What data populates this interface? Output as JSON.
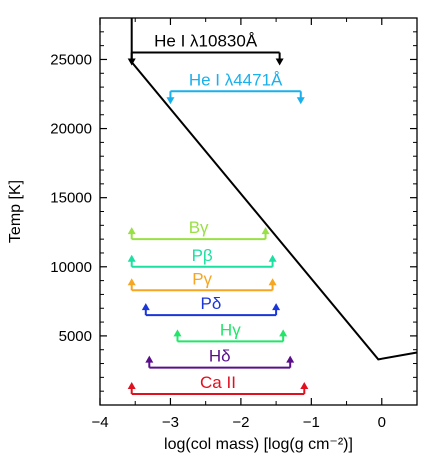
{
  "chart_data": {
    "type": "line",
    "xlabel": "log(col mass) [log(g cm⁻²)]",
    "ylabel": "Temp [K]",
    "xlim": [
      -4,
      0.5
    ],
    "ylim": [
      0,
      28000
    ],
    "xticks": [
      -4,
      -3,
      -2,
      -1,
      0
    ],
    "xtick_labels": [
      "−4",
      "−3",
      "−2",
      "−1",
      "0"
    ],
    "yticks": [
      5000,
      10000,
      15000,
      20000,
      25000
    ],
    "ytick_labels": [
      "5000",
      "10000",
      "15000",
      "20000",
      "25000"
    ],
    "series": [
      {
        "color": "#000000",
        "x": [
          -3.55,
          -3.55,
          -0.05,
          0.5
        ],
        "y": [
          28000,
          24800,
          3300,
          3800
        ]
      }
    ],
    "line_formation": [
      {
        "label": "He I λ10830Å",
        "color": "#000000",
        "x_start": -3.55,
        "x_end": -1.45,
        "y": 25500,
        "arrows_to": "down"
      },
      {
        "label": "He I λ4471Å",
        "color": "#1ab0ec",
        "x_start": -3.0,
        "x_end": -1.15,
        "y": 22700,
        "arrows_to": "down"
      },
      {
        "label": "Bγ",
        "color": "#99e045",
        "x_start": -3.55,
        "x_end": -1.65,
        "y": 12000,
        "arrows_to": "up"
      },
      {
        "label": "Pβ",
        "color": "#1ae0a2",
        "x_start": -3.55,
        "x_end": -1.55,
        "y": 10000,
        "arrows_to": "up"
      },
      {
        "label": "Pγ",
        "color": "#f5a623",
        "x_start": -3.55,
        "x_end": -1.55,
        "y": 8300,
        "arrows_to": "up"
      },
      {
        "label": "Pδ",
        "color": "#1a35d9",
        "x_start": -3.35,
        "x_end": -1.5,
        "y": 6500,
        "arrows_to": "up"
      },
      {
        "label": "Hγ",
        "color": "#22e56a",
        "x_start": -2.9,
        "x_end": -1.4,
        "y": 4600,
        "arrows_to": "up"
      },
      {
        "label": "Hδ",
        "color": "#5a0f8a",
        "x_start": -3.3,
        "x_end": -1.3,
        "y": 2700,
        "arrows_to": "up"
      },
      {
        "label": "Ca II",
        "color": "#e0101e",
        "x_start": -3.55,
        "x_end": -1.1,
        "y": 800,
        "arrows_to": "up"
      }
    ]
  }
}
